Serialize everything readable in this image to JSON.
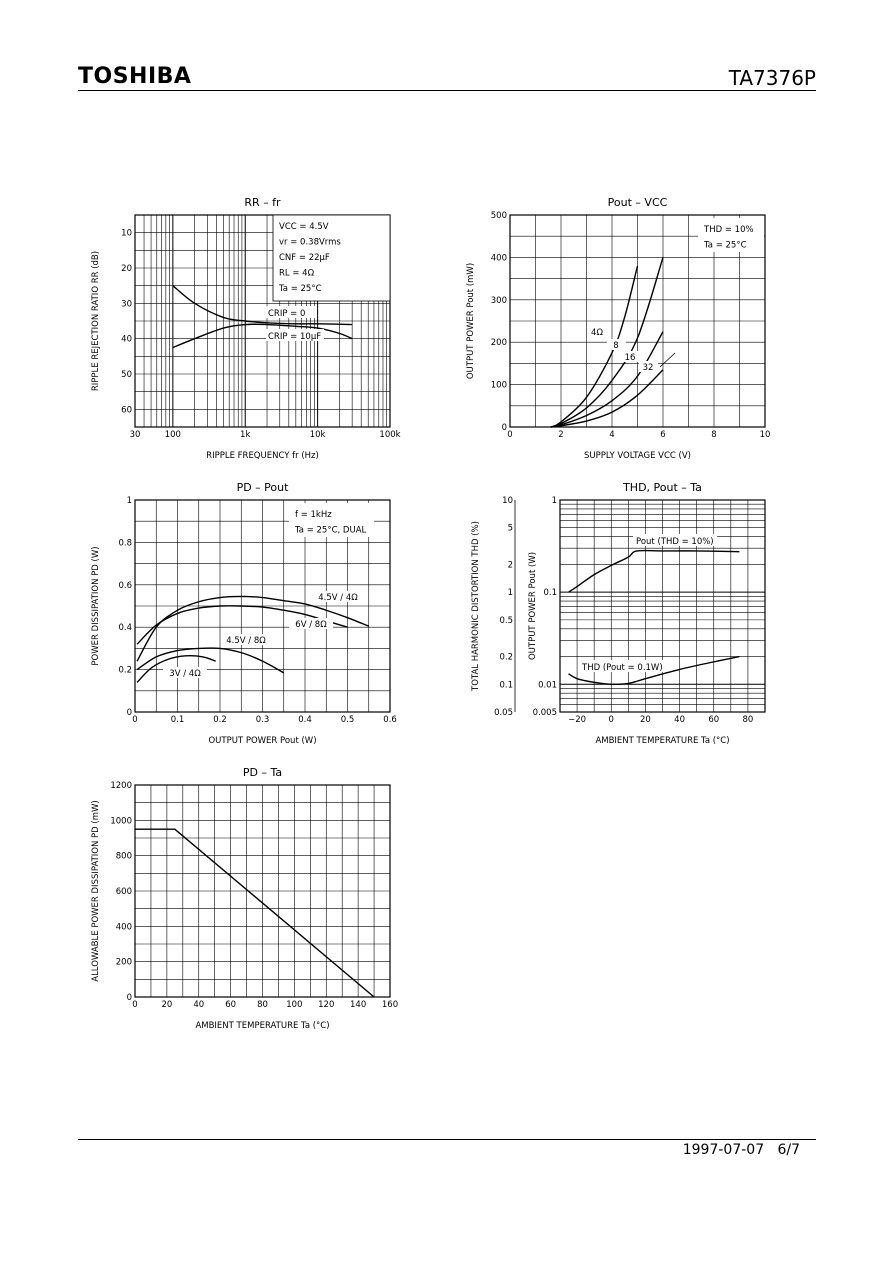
{
  "header": {
    "logo": "TOSHIBA",
    "part": "TA7376P"
  },
  "footer": {
    "date": "1997-07-07",
    "page": "6/7"
  },
  "chart_data": [
    {
      "id": "rr",
      "type": "line",
      "title": "RR – fr",
      "xlabel": "RIPPLE FREQUENCY   fr   (Hz)",
      "ylabel": "RIPPLE REJECTION RATIO   RR   (dB)",
      "x_scale": "log",
      "xlim": [
        30,
        100000
      ],
      "ylim": [
        5,
        65
      ],
      "y_inverted": true,
      "x_ticks": [
        30,
        100,
        1000,
        10000,
        100000
      ],
      "x_tick_labels": [
        "30",
        "100",
        "1k",
        "10k",
        "100k"
      ],
      "y_ticks": [
        10,
        20,
        30,
        40,
        50,
        60
      ],
      "y_tick_labels": [
        "10",
        "20",
        "30",
        "40",
        "50",
        "60"
      ],
      "conditions": [
        "VCC = 4.5V",
        "vr = 0.38Vrms",
        "CNF = 22μF",
        "RL = 4Ω",
        "Ta = 25°C"
      ],
      "series": [
        {
          "name": "CRIP = 0",
          "x": [
            100,
            200,
            500,
            1000,
            2000,
            5000,
            10000,
            30000
          ],
          "y": [
            25,
            30,
            34,
            35,
            35.5,
            35.8,
            35.8,
            36
          ]
        },
        {
          "name": "CRIP = 10μF",
          "x": [
            100,
            200,
            500,
            1000,
            2000,
            5000,
            10000,
            20000,
            30000
          ],
          "y": [
            42.5,
            40,
            37,
            36,
            36,
            36.5,
            37,
            38.5,
            40
          ]
        }
      ]
    },
    {
      "id": "pout_vcc",
      "type": "line",
      "title": "Pout – VCC",
      "xlabel": "SUPPLY VOLTAGE   VCC   (V)",
      "ylabel": "OUTPUT POWER   Pout   (mW)",
      "xlim": [
        0,
        10
      ],
      "ylim": [
        0,
        500
      ],
      "x_ticks": [
        0,
        2,
        4,
        6,
        8,
        10
      ],
      "x_tick_labels": [
        "0",
        "2",
        "4",
        "6",
        "8",
        "10"
      ],
      "y_ticks": [
        0,
        100,
        200,
        300,
        400,
        500
      ],
      "y_tick_labels": [
        "0",
        "100",
        "200",
        "300",
        "400",
        "500"
      ],
      "conditions": [
        "THD = 10%",
        "Ta = 25°C"
      ],
      "series": [
        {
          "name": "4Ω",
          "x": [
            1.6,
            2,
            3,
            4,
            4.5,
            5
          ],
          "y": [
            0,
            12,
            70,
            175,
            260,
            380
          ]
        },
        {
          "name": "8",
          "x": [
            1.6,
            2,
            3,
            4,
            5,
            6
          ],
          "y": [
            0,
            8,
            45,
            110,
            210,
            400
          ]
        },
        {
          "name": "16",
          "x": [
            1.6,
            2,
            3,
            4,
            5,
            6
          ],
          "y": [
            0,
            5,
            27,
            62,
            120,
            225
          ]
        },
        {
          "name": "32",
          "x": [
            1.6,
            2,
            3,
            4,
            5,
            6
          ],
          "y": [
            0,
            3,
            14,
            35,
            75,
            135
          ]
        }
      ]
    },
    {
      "id": "pd_pout",
      "type": "line",
      "title": "PD – Pout",
      "xlabel": "OUTPUT POWER   Pout   (W)",
      "ylabel": "POWER DISSIPATION   PD   (W)",
      "xlim": [
        0,
        0.6
      ],
      "ylim": [
        0,
        1
      ],
      "x_ticks": [
        0,
        0.1,
        0.2,
        0.3,
        0.4,
        0.5,
        0.6
      ],
      "x_tick_labels": [
        "0",
        "0.1",
        "0.2",
        "0.3",
        "0.4",
        "0.5",
        "0.6"
      ],
      "y_ticks": [
        0,
        0.2,
        0.4,
        0.6,
        0.8,
        1
      ],
      "y_tick_labels": [
        "0",
        "0.2",
        "0.4",
        "0.6",
        "0.8",
        "1"
      ],
      "conditions": [
        "f = 1kHz",
        "Ta = 25°C, DUAL"
      ],
      "series": [
        {
          "name": "4.5V / 4Ω",
          "x": [
            0.005,
            0.05,
            0.1,
            0.15,
            0.2,
            0.25,
            0.3,
            0.35,
            0.4,
            0.45,
            0.5,
            0.55
          ],
          "y": [
            0.24,
            0.4,
            0.48,
            0.52,
            0.54,
            0.545,
            0.54,
            0.525,
            0.51,
            0.48,
            0.445,
            0.405
          ]
        },
        {
          "name": "6V / 8Ω",
          "x": [
            0.005,
            0.05,
            0.1,
            0.15,
            0.2,
            0.25,
            0.3,
            0.35,
            0.4,
            0.45,
            0.5
          ],
          "y": [
            0.32,
            0.41,
            0.465,
            0.49,
            0.5,
            0.5,
            0.495,
            0.48,
            0.46,
            0.43,
            0.4
          ]
        },
        {
          "name": "4.5V / 8Ω",
          "x": [
            0.005,
            0.05,
            0.1,
            0.15,
            0.2,
            0.25,
            0.3,
            0.35
          ],
          "y": [
            0.2,
            0.26,
            0.29,
            0.3,
            0.3,
            0.28,
            0.24,
            0.185
          ]
        },
        {
          "name": "3V / 4Ω",
          "x": [
            0.005,
            0.04,
            0.08,
            0.12,
            0.16,
            0.19
          ],
          "y": [
            0.14,
            0.21,
            0.25,
            0.265,
            0.26,
            0.24
          ]
        }
      ]
    },
    {
      "id": "thd_ta",
      "type": "line",
      "title": "THD, Pout – Ta",
      "xlabel": "AMBIENT TEMPERATURE   Ta   (°C)",
      "ylabel": "TOTAL HARMONIC DISTORTION   THD   (%)",
      "ylabel2": "OUTPUT POWER   Pout   (W)",
      "xlim": [
        -30,
        90
      ],
      "x_ticks": [
        -20,
        0,
        20,
        40,
        60,
        80
      ],
      "x_tick_labels": [
        "−20",
        "0",
        "20",
        "40",
        "60",
        "80"
      ],
      "y_scale": "log",
      "ylim": [
        0.05,
        10
      ],
      "y_ticks": [
        0.05,
        0.1,
        0.2,
        0.5,
        1,
        2,
        5,
        10
      ],
      "y_tick_labels": [
        "0.05",
        "0.1",
        "0.2",
        "0.5",
        "1",
        "2",
        "5",
        "10"
      ],
      "y2_scale": "log",
      "y2lim": [
        0.005,
        1
      ],
      "y2_ticks": [
        0.005,
        0.01,
        0.1,
        1
      ],
      "y2_tick_labels": [
        "0.005",
        "0.01",
        "0.1",
        "1"
      ],
      "series": [
        {
          "name": "Pout (THD = 10%)",
          "axis": "y2",
          "x": [
            -25,
            -20,
            -10,
            0,
            10,
            15,
            30,
            50,
            75
          ],
          "y": [
            0.1,
            0.115,
            0.155,
            0.195,
            0.24,
            0.28,
            0.28,
            0.28,
            0.275
          ]
        },
        {
          "name": "THD (Pout = 0.1W)",
          "axis": "y",
          "x": [
            -25,
            -20,
            -10,
            0,
            10,
            20,
            40,
            60,
            75
          ],
          "y": [
            0.13,
            0.115,
            0.105,
            0.1,
            0.102,
            0.115,
            0.145,
            0.175,
            0.2
          ]
        }
      ]
    },
    {
      "id": "pd_ta",
      "type": "line",
      "title": "PD – Ta",
      "xlabel": "AMBIENT TEMPERATURE   Ta   (°C)",
      "ylabel": "ALLOWABLE POWER DISSIPATION   PD   (mW)",
      "xlim": [
        0,
        160
      ],
      "ylim": [
        0,
        1200
      ],
      "x_ticks": [
        0,
        20,
        40,
        60,
        80,
        100,
        120,
        140,
        160
      ],
      "x_tick_labels": [
        "0",
        "20",
        "40",
        "60",
        "80",
        "100",
        "120",
        "140",
        "160"
      ],
      "y_ticks": [
        0,
        200,
        400,
        600,
        800,
        1000,
        1200
      ],
      "y_tick_labels": [
        "0",
        "200",
        "400",
        "600",
        "800",
        "1000",
        "1200"
      ],
      "series": [
        {
          "x": [
            0,
            25,
            150
          ],
          "y": [
            950,
            950,
            0
          ]
        }
      ]
    }
  ]
}
